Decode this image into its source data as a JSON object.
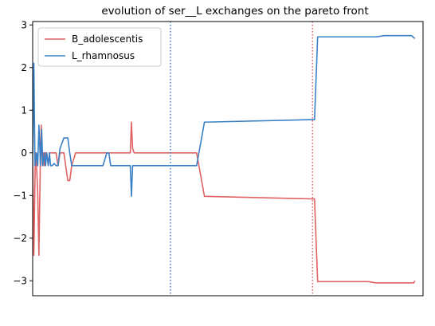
{
  "chart_data": {
    "type": "line",
    "title": "evolution of ser__L exchanges on the pareto front",
    "xlabel": "",
    "ylabel": "",
    "xlim": [
      0,
      100
    ],
    "ylim": [
      -3.35,
      3.08
    ],
    "yticks": [
      -3,
      -2,
      -1,
      0,
      1,
      2,
      3
    ],
    "xticks_shown": false,
    "grid": false,
    "legend_position": "top-left",
    "vlines": [
      {
        "x": 35.3,
        "color": "#3a80c6",
        "style": "dotted"
      },
      {
        "x": 71.7,
        "color": "#e06262",
        "style": "dotted"
      }
    ],
    "series": [
      {
        "name": "B_adolescentis",
        "color": "#e06262",
        "x": [
          0,
          0.3,
          0.7,
          1.0,
          1.3,
          1.6,
          2.0,
          2.2,
          2.5,
          2.8,
          3.0,
          3.3,
          3.6,
          4.0,
          4.3,
          4.6,
          5,
          6,
          6.5,
          7,
          8,
          9,
          9.5,
          10,
          11,
          12,
          13,
          14,
          15,
          16,
          17,
          18,
          20,
          22,
          24,
          25,
          25.3,
          25.6,
          26,
          27,
          30,
          32,
          35,
          38,
          40,
          42,
          44,
          72,
          72.2,
          73,
          74,
          75,
          76,
          80,
          82,
          84,
          86,
          88,
          90,
          94,
          96.5,
          97,
          97.3,
          97.6,
          97.9
        ],
        "y": [
          0,
          -2.4,
          0,
          -0.3,
          -0.95,
          -2.4,
          0,
          0.65,
          -0.3,
          0,
          -0.3,
          0,
          0,
          -0.3,
          0,
          0,
          0,
          0,
          -0.3,
          0,
          0,
          -0.65,
          -0.65,
          -0.3,
          0,
          0,
          0,
          0,
          0,
          0,
          0,
          0,
          0,
          0,
          0,
          0,
          0.72,
          0.1,
          0,
          0,
          0,
          0,
          0,
          0,
          0,
          0,
          -1.02,
          -1.08,
          -1.08,
          -3.02,
          -3.02,
          -3.02,
          -3.02,
          -3.02,
          -3.02,
          -3.02,
          -3.02,
          -3.05,
          -3.05,
          -3.05,
          -3.05,
          -3.05,
          -3.05,
          -3.05,
          -3.0
        ]
      },
      {
        "name": "L_rhamnosus",
        "color": "#3a80c6",
        "x": [
          0,
          0.3,
          0.6,
          1.0,
          1.3,
          1.6,
          2.0,
          2.3,
          2.6,
          3.0,
          3.3,
          3.6,
          4.0,
          4.3,
          4.6,
          5,
          5.5,
          6,
          6.5,
          7,
          8,
          9,
          9.5,
          10,
          11,
          12,
          14,
          16,
          18,
          19,
          19.5,
          20,
          22,
          24,
          25,
          25.3,
          25.6,
          26,
          27,
          28,
          30,
          32,
          35,
          38,
          40,
          42,
          44,
          72,
          72.2,
          73,
          74,
          75,
          80,
          85,
          88,
          90,
          94,
          97,
          97.9
        ],
        "y": [
          -0.3,
          2.1,
          -0.3,
          0,
          -0.3,
          0.65,
          -0.3,
          0.55,
          -0.3,
          0,
          -0.3,
          0,
          -0.3,
          0,
          -0.3,
          -0.3,
          -0.25,
          -0.3,
          -0.3,
          0.1,
          0.35,
          0.35,
          0,
          -0.3,
          -0.3,
          -0.3,
          -0.3,
          -0.3,
          -0.3,
          0,
          0,
          -0.3,
          -0.3,
          -0.3,
          -0.3,
          -1.02,
          -0.3,
          -0.3,
          -0.3,
          -0.3,
          -0.3,
          -0.3,
          -0.3,
          -0.3,
          -0.3,
          -0.3,
          0.72,
          0.78,
          0.78,
          2.72,
          2.72,
          2.72,
          2.72,
          2.72,
          2.72,
          2.75,
          2.75,
          2.75,
          2.68
        ]
      }
    ]
  }
}
